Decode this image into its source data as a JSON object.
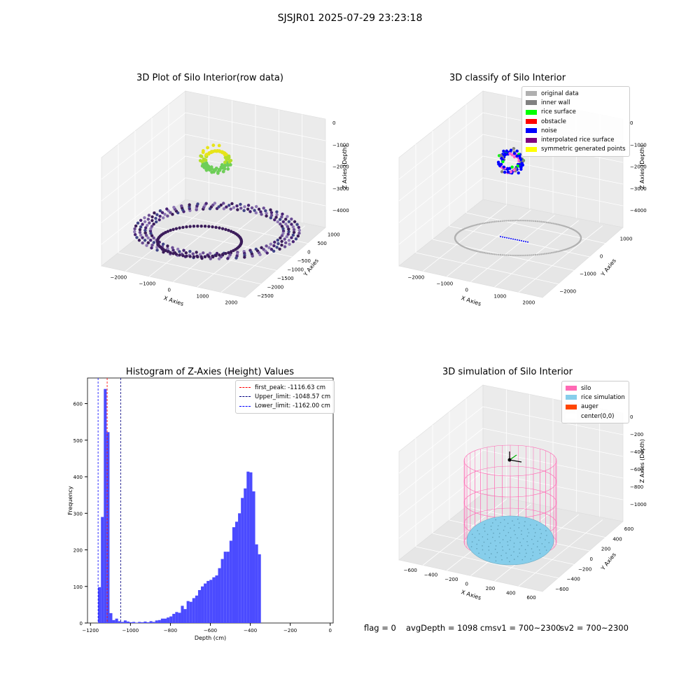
{
  "suptitle": "SJSJR01 2025-07-29 23:23:18",
  "panels": {
    "raw": {
      "title": "3D Plot of Silo Interior(row data)",
      "xlabel": "X Axies",
      "ylabel": "Y Axies",
      "zlabel": "Z Axies (Depth)",
      "xticks": [
        "−2000",
        "−1000",
        "0",
        "1000",
        "2000"
      ],
      "yticks": [
        "1000",
        "500",
        "0",
        "−500",
        "−1000",
        "−1500",
        "−2000",
        "−2500"
      ],
      "zticks": [
        "0",
        "−1000",
        "−2000",
        "−3000",
        "−4000"
      ]
    },
    "classify": {
      "title": "3D classify of Silo Interior",
      "xlabel": "X Axies",
      "ylabel": "Y Axies",
      "zlabel": "Z Axies (Depth)",
      "xticks": [
        "−2000",
        "−1000",
        "0",
        "1000",
        "2000"
      ],
      "yticks": [
        "1000",
        "0",
        "−1000",
        "−2000"
      ],
      "zticks": [
        "0",
        "−1000",
        "−2000",
        "−3000",
        "−4000"
      ],
      "legend": [
        {
          "label": "original data",
          "color": "#b0b0b0"
        },
        {
          "label": "inner wall",
          "color": "#808080"
        },
        {
          "label": "rice surface",
          "color": "#00ff00"
        },
        {
          "label": "obstacle",
          "color": "#ff0000"
        },
        {
          "label": "noise",
          "color": "#0000ff"
        },
        {
          "label": "interpolated rice surface",
          "color": "#800080"
        },
        {
          "label": "symmetric generated points",
          "color": "#ffff00"
        }
      ]
    },
    "histogram": {
      "title": "Histogram of Z-Axies (Height) Values",
      "legend": [
        {
          "label": "first_peak: -1116.63 cm",
          "color": "#ff0000"
        },
        {
          "label": "Upper_limit: -1048.57 cm",
          "color": "#000080"
        },
        {
          "label": "Lower_limit: -1162.00 cm",
          "color": "#0000ff"
        }
      ]
    },
    "simulation": {
      "title": "3D simulation of Silo Interior",
      "xlabel": "X Axies",
      "ylabel": "Y Axies",
      "zlabel": "Z Axies (Depth)",
      "xticks": [
        "−600",
        "−400",
        "−200",
        "0",
        "200",
        "400",
        "600"
      ],
      "yticks": [
        "600",
        "400",
        "200",
        "0",
        "−200",
        "−400",
        "−600"
      ],
      "zticks": [
        "0",
        "−200",
        "−400",
        "−600",
        "−800",
        "−1000"
      ],
      "legend": [
        {
          "label": "silo",
          "color": "#ff69b4"
        },
        {
          "label": "rice simulation",
          "color": "#87ceeb"
        },
        {
          "label": "auger",
          "color": "#ff4500"
        },
        {
          "label": "center(0,0)",
          "color": "#ffffff"
        }
      ]
    }
  },
  "footer": {
    "flag": "flag = 0",
    "avg": "avgDepth = 1098 cmsv1 = 700~2300",
    "sv2": "sv2 = 700~2300"
  },
  "chart_data": {
    "type": "bar",
    "title": "Histogram of Z-Axies (Height) Values",
    "xlabel": "Depth (cm)",
    "ylabel": "Frequency",
    "xlim": [
      -1215,
      15
    ],
    "ylim": [
      0,
      670
    ],
    "xticks": [
      -1200,
      -1000,
      -800,
      -600,
      -400,
      -200,
      0
    ],
    "yticks": [
      0,
      100,
      200,
      300,
      400,
      500,
      600
    ],
    "bar_color": "#4b4bff",
    "bin_width": 14.3,
    "bin_starts": [
      -1162,
      -1147.7,
      -1133.4,
      -1119.1,
      -1104.8,
      -1090.5,
      -1076.2,
      -1061.9,
      -1047.6,
      -1033.3,
      -1019,
      -1004.7,
      -990.4,
      -976.1,
      -961.8,
      -947.5,
      -933.2,
      -918.9,
      -904.6,
      -890.3,
      -876,
      -861.7,
      -847.4,
      -833.1,
      -818.8,
      -804.5,
      -790.2,
      -775.9,
      -761.6,
      -747.3,
      -733,
      -718.7,
      -704.4,
      -690.1,
      -675.8,
      -661.5,
      -647.2,
      -632.9,
      -618.6,
      -604.3,
      -590,
      -575.7,
      -561.4,
      -547.1,
      -532.8,
      -518.5,
      -504.2,
      -489.9,
      -475.6,
      -461.3,
      -447,
      -432.7,
      -418.4,
      -404.1,
      -389.8,
      -375.5,
      -361.2,
      -346.9,
      -332.6,
      -318.3,
      -304,
      -289.7,
      -275.4,
      -261.1,
      -246.8,
      -232.5,
      -218.2,
      -203.9,
      -189.6,
      -175.3,
      -161,
      -146.7,
      -132.4,
      -118.1,
      -103.8,
      -89.5,
      -75.2,
      -60.9,
      -46.6,
      -32.3
    ],
    "values": [
      98,
      290,
      640,
      522,
      27,
      8,
      12,
      5,
      3,
      7,
      4,
      2,
      3,
      1,
      3,
      2,
      4,
      2,
      5,
      3,
      7,
      8,
      12,
      12,
      15,
      18,
      25,
      30,
      28,
      47,
      38,
      60,
      58,
      68,
      75,
      90,
      100,
      108,
      115,
      118,
      125,
      130,
      150,
      175,
      195,
      195,
      225,
      262,
      277,
      300,
      342,
      368,
      414,
      412,
      360,
      215,
      188,
      0,
      0,
      0,
      0,
      0,
      0,
      0,
      0,
      0,
      0,
      0,
      0,
      0,
      0,
      0,
      0,
      0,
      0,
      0,
      0,
      0,
      0,
      0
    ],
    "vlines": [
      {
        "label": "first_peak",
        "x": -1116.63,
        "color": "#ff0000"
      },
      {
        "label": "Upper_limit",
        "x": -1048.57,
        "color": "#000080"
      },
      {
        "label": "Lower_limit",
        "x": -1162.0,
        "color": "#0000ff"
      }
    ]
  }
}
